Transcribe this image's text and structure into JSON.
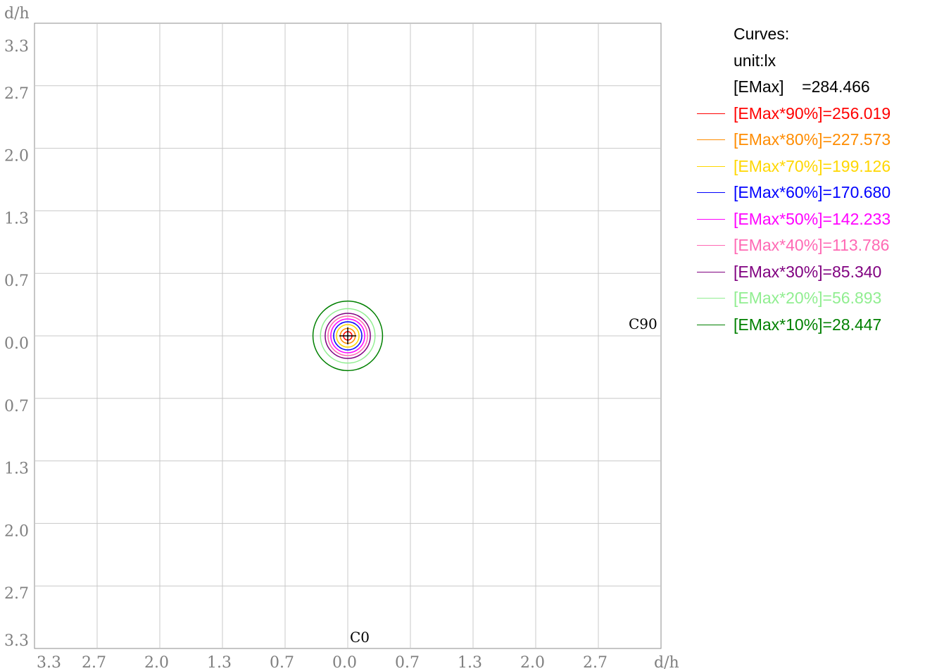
{
  "chart_data": {
    "type": "contour",
    "x_unit_label": "d/h",
    "y_unit_label": "d/h",
    "x_ticks": [
      "3.3",
      "2.7",
      "2.0",
      "1.3",
      "0.7",
      "0.0",
      "0.7",
      "1.3",
      "2.0",
      "2.7"
    ],
    "y_ticks": [
      "3.3",
      "2.7",
      "2.0",
      "1.3",
      "0.7",
      "0.0",
      "0.7",
      "1.3",
      "2.0",
      "2.7",
      "3.3"
    ],
    "xlim": [
      -3.33,
      3.33
    ],
    "ylim": [
      -3.33,
      3.33
    ],
    "grid": true,
    "plane_labels": {
      "c0": "C0",
      "c90": "C90"
    },
    "legend": {
      "title": "Curves:",
      "unit": "unit:lx",
      "emax": "[EMax]    =284.466"
    },
    "series": [
      {
        "name": "[EMax*90%]=256.019",
        "color": "#ff0000",
        "radius": 0.045
      },
      {
        "name": "[EMax*80%]=227.573",
        "color": "#ff8c00",
        "radius": 0.08
      },
      {
        "name": "[EMax*70%]=199.126",
        "color": "#ffd700",
        "radius": 0.12
      },
      {
        "name": "[EMax*60%]=170.680",
        "color": "#0000ff",
        "radius": 0.15
      },
      {
        "name": "[EMax*50%]=142.233",
        "color": "#ff00ff",
        "radius": 0.18
      },
      {
        "name": "[EMax*40%]=113.786",
        "color": "#ff69b4",
        "radius": 0.21
      },
      {
        "name": "[EMax*30%]=85.340",
        "color": "#800080",
        "radius": 0.24
      },
      {
        "name": "[EMax*20%]=56.893",
        "color": "#90ee90",
        "radius": 0.29
      },
      {
        "name": "[EMax*10%]=28.447",
        "color": "#008000",
        "radius": 0.37
      }
    ]
  }
}
